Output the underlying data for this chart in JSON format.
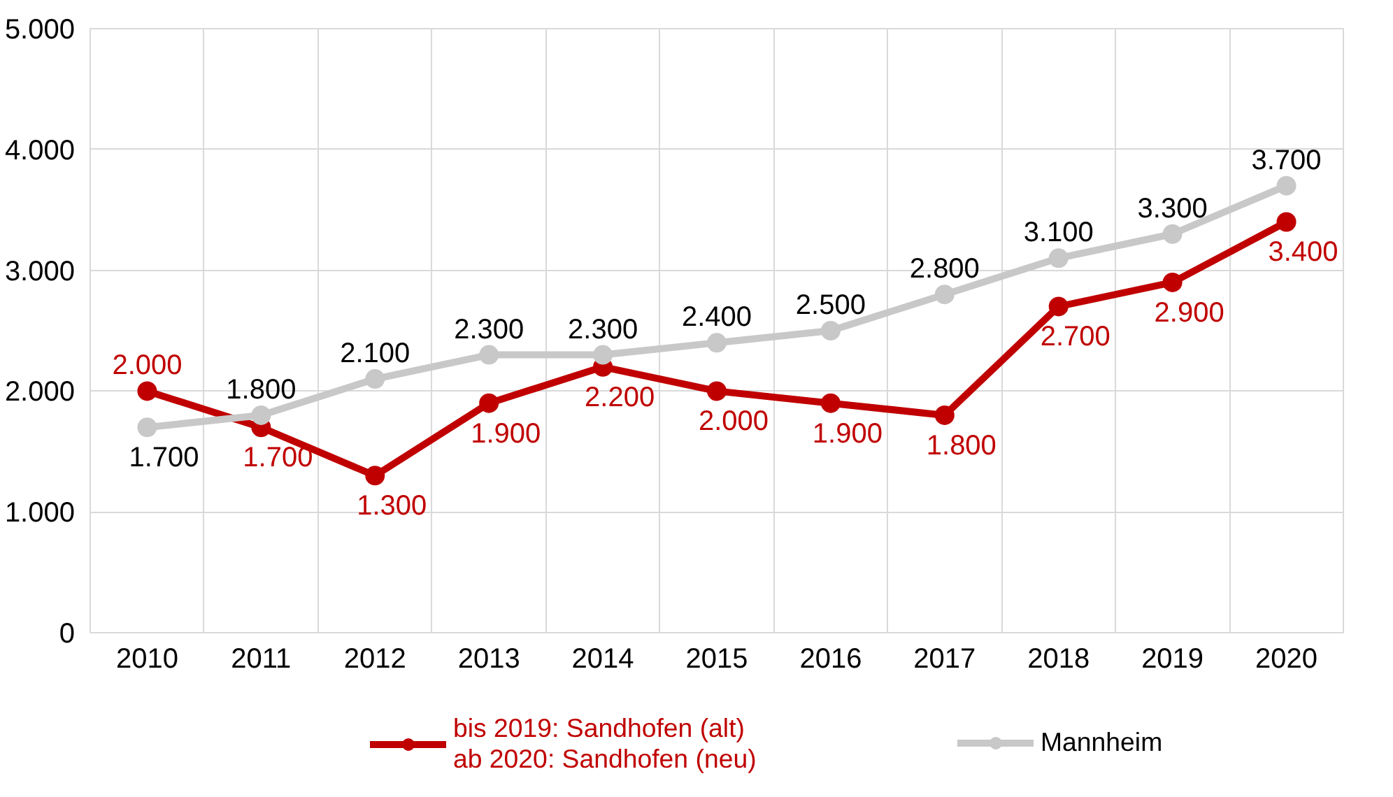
{
  "chart_data": {
    "type": "line",
    "categories": [
      "2010",
      "2011",
      "2012",
      "2013",
      "2014",
      "2015",
      "2016",
      "2017",
      "2018",
      "2019",
      "2020"
    ],
    "series": [
      {
        "name": "bis 2019: Sandhofen (alt)\nab 2020: Sandhofen (neu)",
        "color": "#c00000",
        "values": [
          2000,
          1700,
          1300,
          1900,
          2200,
          2000,
          1900,
          1800,
          2700,
          2900,
          3400
        ],
        "value_labels": [
          "2.000",
          "1.700",
          "1.300",
          "1.900",
          "2.200",
          "2.000",
          "1.900",
          "1.800",
          "2.700",
          "2.900",
          "3.400"
        ]
      },
      {
        "name": "Mannheim",
        "color": "#c8c8c8",
        "values": [
          1700,
          1800,
          2100,
          2300,
          2300,
          2400,
          2500,
          2800,
          3100,
          3300,
          3700
        ],
        "value_labels": [
          "1.700",
          "1.800",
          "2.100",
          "2.300",
          "2.300",
          "2.400",
          "2.500",
          "2.800",
          "3.100",
          "3.300",
          "3.700"
        ]
      }
    ],
    "ylim": [
      0,
      5000
    ],
    "yticks": [
      {
        "value": 0,
        "label": "0"
      },
      {
        "value": 1000,
        "label": "1.000"
      },
      {
        "value": 2000,
        "label": "2.000"
      },
      {
        "value": 3000,
        "label": "3.000"
      },
      {
        "value": 4000,
        "label": "4.000"
      },
      {
        "value": 5000,
        "label": "5.000"
      }
    ],
    "grid": true,
    "legend": "bottom",
    "marker": "circle",
    "line_style": "solid"
  }
}
